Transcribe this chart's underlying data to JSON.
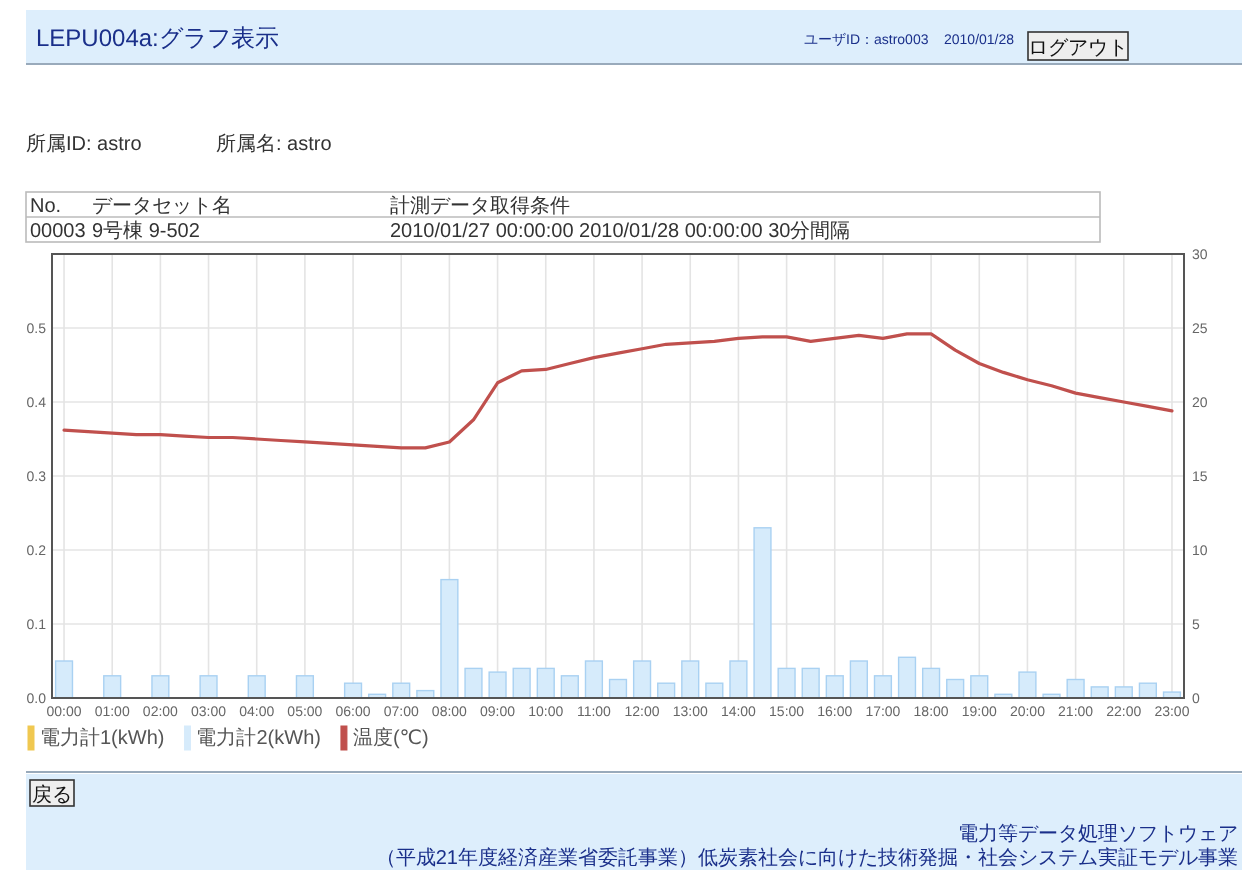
{
  "chart_data": {
    "type": "bar",
    "title": "LEPU004a:グラフ表示",
    "annotations": [
      "ユーザID：astro003",
      "2010/01/28",
      "ログアウト",
      "所属ID: astro",
      "所属名: astro",
      "No.",
      "データセット名",
      "計測データ取得条件",
      "00003",
      "9号棟 9-502",
      "2010/01/27 00:00:00 2010/01/28 00:00:00 30分間隔",
      "戻る",
      "電力等データ処理ソフトウェア",
      "（平成21年度経済産業省委託事業）低炭素社会に向けた技術発掘・社会システム実証モデル事業"
    ],
    "categories": [
      "00:00",
      null,
      "01:00",
      null,
      "02:00",
      null,
      "03:00",
      null,
      "04:00",
      null,
      "05:00",
      null,
      "06:00",
      null,
      "07:00",
      null,
      "08:00",
      null,
      "09:00",
      null,
      "10:00",
      null,
      "11:00",
      null,
      "12:00",
      null,
      "13:00",
      null,
      "14:00",
      null,
      "15:00",
      null,
      "16:00",
      null,
      "17:00",
      null,
      "18:00",
      null,
      "19:00",
      null,
      "20:00",
      null,
      "21:00",
      null,
      "22:00",
      null,
      "23:00"
    ],
    "series": [
      {
        "name": "電力計1(kWh)",
        "color": "#f0c850",
        "values": [
          null,
          null,
          null,
          null,
          null,
          null,
          null,
          null,
          null,
          null,
          null,
          null,
          null,
          null,
          null,
          null,
          null,
          null,
          null,
          null,
          null,
          null,
          null,
          null,
          null,
          null,
          null,
          null,
          null,
          null,
          null,
          null,
          null,
          null,
          null,
          null,
          null,
          null,
          null,
          null,
          null,
          null,
          null,
          null,
          null,
          null,
          null
        ]
      },
      {
        "name": "電力計2(kWh)",
        "color": "#d6ebfb",
        "values": [
          0.05,
          0,
          0.03,
          0,
          0.03,
          0,
          0.03,
          0,
          0.03,
          0,
          0.03,
          0,
          0.02,
          0.005,
          0.02,
          0.01,
          0.16,
          0.04,
          0.035,
          0.04,
          0.04,
          0.03,
          0.05,
          0.025,
          0.05,
          0.02,
          0.05,
          0.02,
          0.05,
          0.23,
          0.04,
          0.04,
          0.03,
          0.05,
          0.03,
          0.055,
          0.04,
          0.025,
          0.03,
          0.005,
          0.035,
          0.005,
          0.025,
          0.015,
          0.015,
          0.02,
          0.008
        ]
      },
      {
        "name": "温度(℃)",
        "color": "#c0504d",
        "type": "line",
        "axis": "y2",
        "values": [
          18.1,
          18.0,
          17.9,
          17.8,
          17.8,
          17.7,
          17.6,
          17.6,
          17.5,
          17.4,
          17.3,
          17.2,
          17.1,
          17.0,
          16.9,
          16.9,
          17.3,
          18.8,
          21.3,
          22.1,
          22.2,
          22.6,
          23.0,
          23.3,
          23.6,
          23.9,
          24.0,
          24.1,
          24.3,
          24.4,
          24.4,
          24.1,
          24.3,
          24.5,
          24.3,
          24.6,
          24.6,
          23.5,
          22.6,
          22.0,
          21.5,
          21.1,
          20.6,
          20.3,
          20.0,
          19.7,
          19.4
        ]
      }
    ],
    "ylim": [
      0,
      0.6
    ],
    "yticks": [
      {
        "value": 0,
        "label": "0.0"
      },
      0.1,
      0.2,
      0.3,
      0.4,
      0.5
    ],
    "y2lim": [
      0,
      30
    ],
    "y2ticks": [
      0,
      5,
      10,
      15,
      20,
      25,
      30
    ],
    "grid": true,
    "legend": "bottom left"
  }
}
